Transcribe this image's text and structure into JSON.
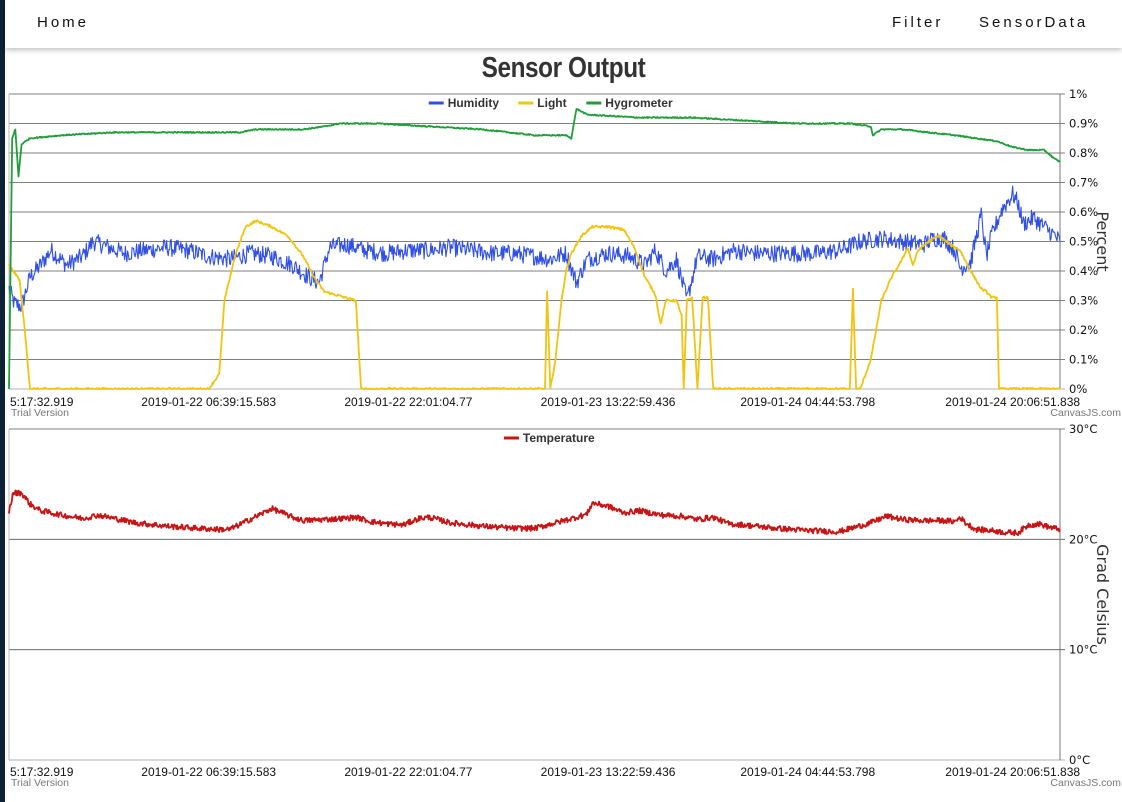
{
  "nav": {
    "home": "Home",
    "filter": "Filter",
    "sensordata": "SensorData"
  },
  "title": "Sensor Output",
  "colors": {
    "humidity": "#2f4fe8",
    "light": "#f2c40f",
    "hygrometer": "#1f9e3a",
    "temperature": "#c81414"
  },
  "chart_data": [
    {
      "type": "line",
      "title": "Sensor Output",
      "ylabel": "Percent",
      "xlabel": "",
      "ylim": [
        0,
        1
      ],
      "y_ticks": [
        "0%",
        "0.1%",
        "0.2%",
        "0.3%",
        "0.4%",
        "0.5%",
        "0.6%",
        "0.7%",
        "0.8%",
        "0.9%",
        "1%"
      ],
      "x_ticks": [
        "5:17:32.919",
        "2019-01-22 06:39:15.583",
        "2019-01-22 22:01:04.77",
        "2019-01-23 13:22:59.436",
        "2019-01-24 04:44:53.798",
        "2019-01-24 20:06:51.838"
      ],
      "grid": true,
      "legend": "top-center",
      "trial_note": "Trial Version",
      "credit": "CanvasJS.com",
      "series": [
        {
          "name": "Humidity",
          "color": "#2f4fe8",
          "points": [
            [
              0,
              0.34
            ],
            [
              0.005,
              0.29
            ],
            [
              0.012,
              0.28
            ],
            [
              0.02,
              0.38
            ],
            [
              0.03,
              0.42
            ],
            [
              0.04,
              0.47
            ],
            [
              0.055,
              0.42
            ],
            [
              0.07,
              0.45
            ],
            [
              0.08,
              0.5
            ],
            [
              0.095,
              0.48
            ],
            [
              0.11,
              0.46
            ],
            [
              0.13,
              0.47
            ],
            [
              0.15,
              0.48
            ],
            [
              0.17,
              0.47
            ],
            [
              0.19,
              0.45
            ],
            [
              0.21,
              0.44
            ],
            [
              0.23,
              0.46
            ],
            [
              0.25,
              0.45
            ],
            [
              0.27,
              0.42
            ],
            [
              0.285,
              0.38
            ],
            [
              0.295,
              0.36
            ],
            [
              0.305,
              0.48
            ],
            [
              0.32,
              0.49
            ],
            [
              0.34,
              0.47
            ],
            [
              0.36,
              0.46
            ],
            [
              0.38,
              0.47
            ],
            [
              0.4,
              0.47
            ],
            [
              0.42,
              0.48
            ],
            [
              0.44,
              0.47
            ],
            [
              0.46,
              0.46
            ],
            [
              0.48,
              0.46
            ],
            [
              0.5,
              0.45
            ],
            [
              0.515,
              0.44
            ],
            [
              0.53,
              0.46
            ],
            [
              0.54,
              0.36
            ],
            [
              0.55,
              0.44
            ],
            [
              0.57,
              0.46
            ],
            [
              0.59,
              0.45
            ],
            [
              0.605,
              0.42
            ],
            [
              0.615,
              0.47
            ],
            [
              0.625,
              0.4
            ],
            [
              0.635,
              0.44
            ],
            [
              0.645,
              0.3
            ],
            [
              0.655,
              0.45
            ],
            [
              0.67,
              0.44
            ],
            [
              0.69,
              0.47
            ],
            [
              0.71,
              0.46
            ],
            [
              0.73,
              0.46
            ],
            [
              0.75,
              0.46
            ],
            [
              0.77,
              0.46
            ],
            [
              0.79,
              0.47
            ],
            [
              0.81,
              0.5
            ],
            [
              0.83,
              0.51
            ],
            [
              0.85,
              0.5
            ],
            [
              0.87,
              0.49
            ],
            [
              0.88,
              0.51
            ],
            [
              0.89,
              0.51
            ],
            [
              0.9,
              0.47
            ],
            [
              0.905,
              0.41
            ],
            [
              0.915,
              0.43
            ],
            [
              0.925,
              0.59
            ],
            [
              0.93,
              0.45
            ],
            [
              0.935,
              0.52
            ],
            [
              0.945,
              0.61
            ],
            [
              0.955,
              0.66
            ],
            [
              0.96,
              0.63
            ],
            [
              0.965,
              0.56
            ],
            [
              0.975,
              0.58
            ],
            [
              0.985,
              0.55
            ],
            [
              0.995,
              0.52
            ],
            [
              1,
              0.5
            ]
          ]
        },
        {
          "name": "Light",
          "color": "#f2c40f",
          "points": [
            [
              0,
              0.42
            ],
            [
              0.01,
              0.37
            ],
            [
              0.015,
              0.2
            ],
            [
              0.02,
              0
            ],
            [
              0.19,
              0
            ],
            [
              0.2,
              0.05
            ],
            [
              0.205,
              0.3
            ],
            [
              0.215,
              0.45
            ],
            [
              0.225,
              0.55
            ],
            [
              0.235,
              0.57
            ],
            [
              0.25,
              0.55
            ],
            [
              0.265,
              0.52
            ],
            [
              0.28,
              0.45
            ],
            [
              0.29,
              0.38
            ],
            [
              0.3,
              0.33
            ],
            [
              0.32,
              0.31
            ],
            [
              0.33,
              0.3
            ],
            [
              0.335,
              0
            ],
            [
              0.51,
              0
            ],
            [
              0.512,
              0.33
            ],
            [
              0.515,
              0
            ],
            [
              0.52,
              0.1
            ],
            [
              0.525,
              0.28
            ],
            [
              0.53,
              0.4
            ],
            [
              0.535,
              0.46
            ],
            [
              0.545,
              0.52
            ],
            [
              0.555,
              0.55
            ],
            [
              0.57,
              0.55
            ],
            [
              0.585,
              0.54
            ],
            [
              0.595,
              0.48
            ],
            [
              0.605,
              0.38
            ],
            [
              0.615,
              0.32
            ],
            [
              0.62,
              0.22
            ],
            [
              0.625,
              0.3
            ],
            [
              0.635,
              0.3
            ],
            [
              0.64,
              0.25
            ],
            [
              0.642,
              0
            ],
            [
              0.645,
              0.3
            ],
            [
              0.65,
              0.31
            ],
            [
              0.655,
              0
            ],
            [
              0.66,
              0.31
            ],
            [
              0.665,
              0.31
            ],
            [
              0.67,
              0
            ],
            [
              0.8,
              0
            ],
            [
              0.803,
              0.34
            ],
            [
              0.806,
              0
            ],
            [
              0.81,
              0
            ],
            [
              0.82,
              0.1
            ],
            [
              0.83,
              0.3
            ],
            [
              0.84,
              0.38
            ],
            [
              0.85,
              0.44
            ],
            [
              0.855,
              0.48
            ],
            [
              0.86,
              0.42
            ],
            [
              0.865,
              0.47
            ],
            [
              0.875,
              0.5
            ],
            [
              0.885,
              0.52
            ],
            [
              0.895,
              0.49
            ],
            [
              0.905,
              0.47
            ],
            [
              0.915,
              0.4
            ],
            [
              0.925,
              0.34
            ],
            [
              0.93,
              0.33
            ],
            [
              0.935,
              0.31
            ],
            [
              0.94,
              0.31
            ],
            [
              0.942,
              0
            ],
            [
              1,
              0
            ]
          ]
        },
        {
          "name": "Hygrometer",
          "color": "#1f9e3a",
          "points": [
            [
              0,
              0
            ],
            [
              0.003,
              0.85
            ],
            [
              0.006,
              0.88
            ],
            [
              0.009,
              0.72
            ],
            [
              0.012,
              0.83
            ],
            [
              0.02,
              0.85
            ],
            [
              0.05,
              0.86
            ],
            [
              0.1,
              0.87
            ],
            [
              0.15,
              0.87
            ],
            [
              0.2,
              0.87
            ],
            [
              0.22,
              0.87
            ],
            [
              0.235,
              0.88
            ],
            [
              0.26,
              0.88
            ],
            [
              0.28,
              0.88
            ],
            [
              0.3,
              0.89
            ],
            [
              0.315,
              0.9
            ],
            [
              0.35,
              0.9
            ],
            [
              0.4,
              0.89
            ],
            [
              0.45,
              0.88
            ],
            [
              0.5,
              0.86
            ],
            [
              0.53,
              0.86
            ],
            [
              0.535,
              0.85
            ],
            [
              0.54,
              0.95
            ],
            [
              0.545,
              0.94
            ],
            [
              0.55,
              0.93
            ],
            [
              0.6,
              0.92
            ],
            [
              0.65,
              0.92
            ],
            [
              0.7,
              0.91
            ],
            [
              0.75,
              0.9
            ],
            [
              0.8,
              0.9
            ],
            [
              0.82,
              0.89
            ],
            [
              0.822,
              0.86
            ],
            [
              0.83,
              0.88
            ],
            [
              0.85,
              0.88
            ],
            [
              0.9,
              0.86
            ],
            [
              0.94,
              0.84
            ],
            [
              0.955,
              0.82
            ],
            [
              0.97,
              0.81
            ],
            [
              0.985,
              0.81
            ],
            [
              0.995,
              0.78
            ],
            [
              1,
              0.77
            ]
          ]
        }
      ]
    },
    {
      "type": "line",
      "title": "",
      "ylabel": "Grad Celsius",
      "xlabel": "",
      "ylim": [
        0,
        30
      ],
      "y_ticks": [
        "0°C",
        "10°C",
        "20°C",
        "30°C"
      ],
      "x_ticks": [
        "5:17:32.919",
        "2019-01-22 06:39:15.583",
        "2019-01-22 22:01:04.77",
        "2019-01-23 13:22:59.436",
        "2019-01-24 04:44:53.798",
        "2019-01-24 20:06:51.838"
      ],
      "grid": true,
      "legend": "top-center",
      "trial_note": "Trial Version",
      "credit": "CanvasJS.com",
      "series": [
        {
          "name": "Temperature",
          "color": "#c81414",
          "points": [
            [
              0,
              22.5
            ],
            [
              0.004,
              24.2
            ],
            [
              0.012,
              24.2
            ],
            [
              0.02,
              23.2
            ],
            [
              0.03,
              22.6
            ],
            [
              0.05,
              22.2
            ],
            [
              0.07,
              21.9
            ],
            [
              0.085,
              22.2
            ],
            [
              0.1,
              21.9
            ],
            [
              0.12,
              21.5
            ],
            [
              0.15,
              21.2
            ],
            [
              0.18,
              21
            ],
            [
              0.2,
              20.9
            ],
            [
              0.21,
              20.9
            ],
            [
              0.225,
              21.6
            ],
            [
              0.24,
              22.3
            ],
            [
              0.25,
              22.8
            ],
            [
              0.26,
              22.4
            ],
            [
              0.27,
              22
            ],
            [
              0.28,
              21.7
            ],
            [
              0.3,
              21.8
            ],
            [
              0.32,
              21.9
            ],
            [
              0.33,
              22
            ],
            [
              0.345,
              21.6
            ],
            [
              0.36,
              21.4
            ],
            [
              0.375,
              21.3
            ],
            [
              0.39,
              21.9
            ],
            [
              0.4,
              22
            ],
            [
              0.42,
              21.5
            ],
            [
              0.45,
              21.2
            ],
            [
              0.48,
              21
            ],
            [
              0.5,
              21
            ],
            [
              0.52,
              21.5
            ],
            [
              0.54,
              22
            ],
            [
              0.55,
              22.3
            ],
            [
              0.555,
              23.3
            ],
            [
              0.57,
              23
            ],
            [
              0.585,
              22.4
            ],
            [
              0.6,
              22.6
            ],
            [
              0.62,
              22.2
            ],
            [
              0.64,
              22.1
            ],
            [
              0.655,
              21.8
            ],
            [
              0.67,
              22
            ],
            [
              0.685,
              21.4
            ],
            [
              0.7,
              21.3
            ],
            [
              0.73,
              21
            ],
            [
              0.76,
              20.8
            ],
            [
              0.79,
              20.7
            ],
            [
              0.805,
              21.1
            ],
            [
              0.82,
              21.5
            ],
            [
              0.835,
              22.1
            ],
            [
              0.85,
              21.8
            ],
            [
              0.87,
              21.7
            ],
            [
              0.89,
              21.7
            ],
            [
              0.9,
              21.6
            ],
            [
              0.905,
              22
            ],
            [
              0.91,
              21.5
            ],
            [
              0.92,
              20.9
            ],
            [
              0.935,
              20.8
            ],
            [
              0.95,
              20.6
            ],
            [
              0.96,
              20.6
            ],
            [
              0.97,
              21.3
            ],
            [
              0.98,
              21.4
            ],
            [
              0.99,
              21.1
            ],
            [
              1,
              20.9
            ]
          ]
        }
      ]
    }
  ]
}
